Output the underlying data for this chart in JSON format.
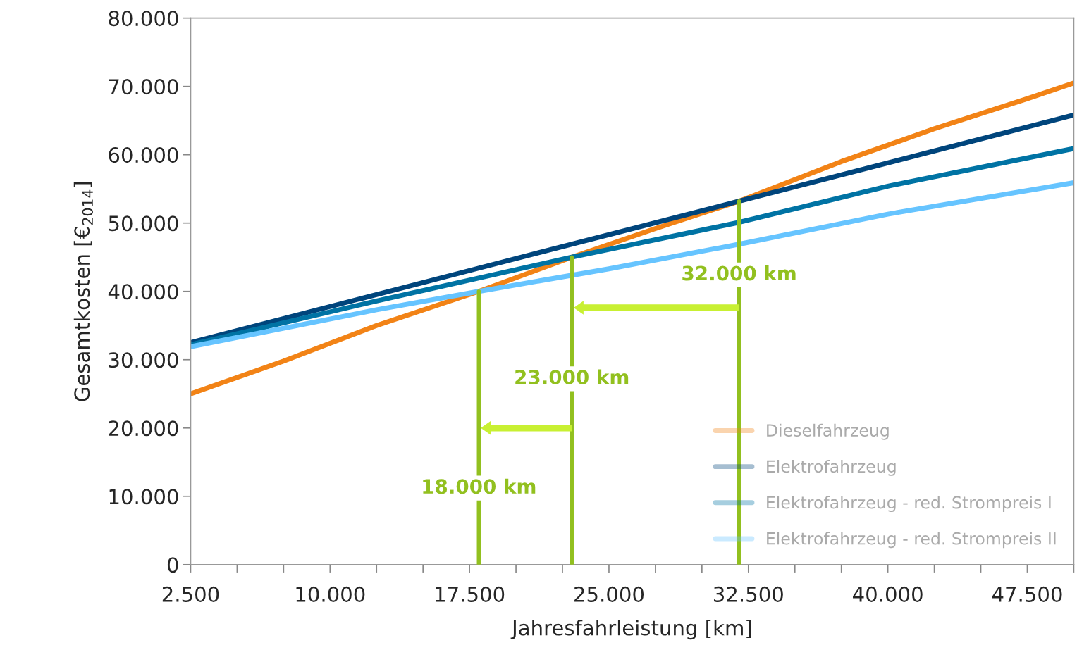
{
  "chart_data": {
    "type": "line",
    "xlabel": "Jahresfahrleistung [km]",
    "ylabel": "Gesamtkosten [€$_{2014}$]",
    "xlim": [
      2500,
      50000
    ],
    "xticks": [
      {
        "value": 2500,
        "label": "2.500"
      },
      {
        "value": 5000,
        "label": null
      },
      {
        "value": 7500,
        "label": null
      },
      {
        "value": 10000,
        "label": "10.000"
      },
      {
        "value": 12500,
        "label": null
      },
      {
        "value": 15000,
        "label": null
      },
      {
        "value": 17500,
        "label": "17.500"
      },
      {
        "value": 20000,
        "label": null
      },
      {
        "value": 22500,
        "label": null
      },
      {
        "value": 25000,
        "label": "25.000"
      },
      {
        "value": 27500,
        "label": null
      },
      {
        "value": 30000,
        "label": null
      },
      {
        "value": 32500,
        "label": "32.500"
      },
      {
        "value": 35000,
        "label": null
      },
      {
        "value": 37500,
        "label": null
      },
      {
        "value": 40000,
        "label": "40.000"
      },
      {
        "value": 42500,
        "label": null
      },
      {
        "value": 45000,
        "label": null
      },
      {
        "value": 47500,
        "label": "47.500"
      },
      {
        "value": 50000,
        "label": null
      }
    ],
    "ylim": [
      0,
      80000
    ],
    "yticks": [
      0,
      {
        "value": 10000,
        "label": "10.000"
      },
      {
        "value": 20000,
        "label": "20.000"
      },
      {
        "value": 30000,
        "label": "30.000"
      },
      {
        "value": 40000,
        "label": "40.000"
      },
      {
        "value": 50000,
        "label": "50.000"
      },
      {
        "value": 60000,
        "label": "60.000"
      },
      {
        "value": 70000,
        "label": "70.000"
      },
      {
        "value": 80000,
        "label": "80.000"
      }
    ],
    "grid": false,
    "legend": "bottom right",
    "line_style": "solid",
    "series": [
      {
        "name": "Dieselfahrzeug",
        "color": "#f28316",
        "x": [
          2500,
          7500,
          12500,
          18000,
          23000,
          27500,
          32000,
          37500,
          42500,
          47500,
          50000
        ],
        "values": [
          25000,
          29800,
          35000,
          40000,
          45000,
          49200,
          53200,
          59000,
          63800,
          68200,
          70500
        ]
      },
      {
        "name": "Elektrofahrzeug",
        "color": "#00457c",
        "x": [
          2500,
          18000,
          32000,
          50000
        ],
        "values": [
          32500,
          43400,
          53200,
          65800
        ]
      },
      {
        "name": "Elektrofahrzeug - red. Strompreis I",
        "color": "#0073a4",
        "x": [
          2500,
          12500,
          23000,
          32000,
          40000,
          50000
        ],
        "values": [
          32200,
          38600,
          45000,
          50100,
          55400,
          60900
        ]
      },
      {
        "name": "Elektrofahrzeug - red. Strompreis II",
        "color": "#66c4ff",
        "x": [
          2500,
          12500,
          18000,
          25000,
          32000,
          40000,
          50000
        ],
        "values": [
          31900,
          37300,
          40000,
          43300,
          46900,
          51300,
          55900
        ]
      }
    ],
    "ref_lines": [
      {
        "axis": "x",
        "value": 18000,
        "label": "18.000 km",
        "color": "#92c01f"
      },
      {
        "axis": "x",
        "value": 23000,
        "label": "23.000 km",
        "color": "#92c01f"
      },
      {
        "axis": "x",
        "value": 32000,
        "label": "32.000 km",
        "color": "#92c01f"
      }
    ]
  }
}
